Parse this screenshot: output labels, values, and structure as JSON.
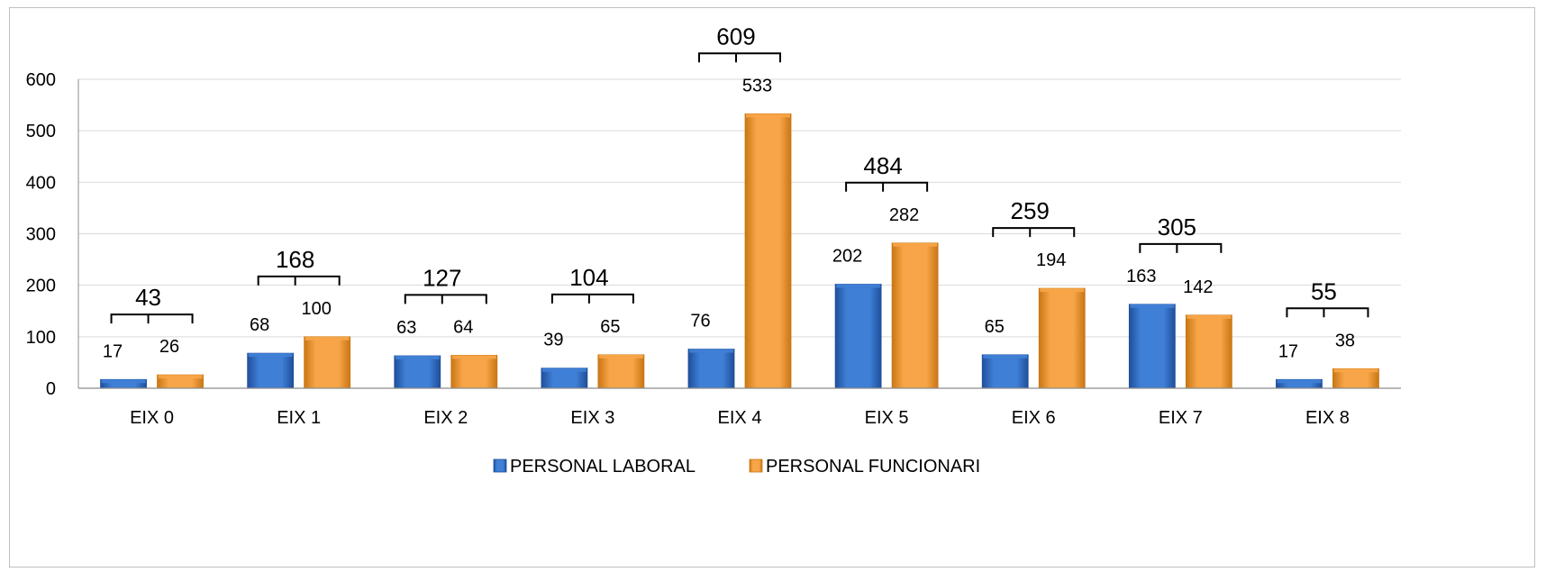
{
  "colors": {
    "laboral": "#3f7fd6",
    "laboral_dark": "#1f4f9a",
    "funcionari": "#f7a548",
    "funcionari_dark": "#c97614",
    "grid": "#d9d9d9",
    "axis": "#8c8c8c",
    "bracket": "#000000"
  },
  "chart_data": {
    "type": "bar",
    "title": "",
    "categories": [
      "EIX 0",
      "EIX 1",
      "EIX 2",
      "EIX 3",
      "EIX 4",
      "EIX 5",
      "EIX 6",
      "EIX 7",
      "EIX 8"
    ],
    "series": [
      {
        "name": "PERSONAL LABORAL",
        "values": [
          17,
          68,
          63,
          39,
          76,
          202,
          65,
          163,
          17
        ]
      },
      {
        "name": "PERSONAL FUNCIONARI",
        "values": [
          26,
          100,
          64,
          65,
          533,
          282,
          194,
          142,
          38
        ]
      }
    ],
    "totals": [
      "43",
      "168",
      "127",
      "104",
      "609",
      "484",
      "259",
      "305",
      "55"
    ],
    "yticks": [
      "0",
      "100",
      "200",
      "300",
      "400",
      "500",
      "600"
    ],
    "ylim": [
      0,
      600
    ],
    "grid": true,
    "legend": "bottom",
    "xlabel": "",
    "ylabel": ""
  }
}
